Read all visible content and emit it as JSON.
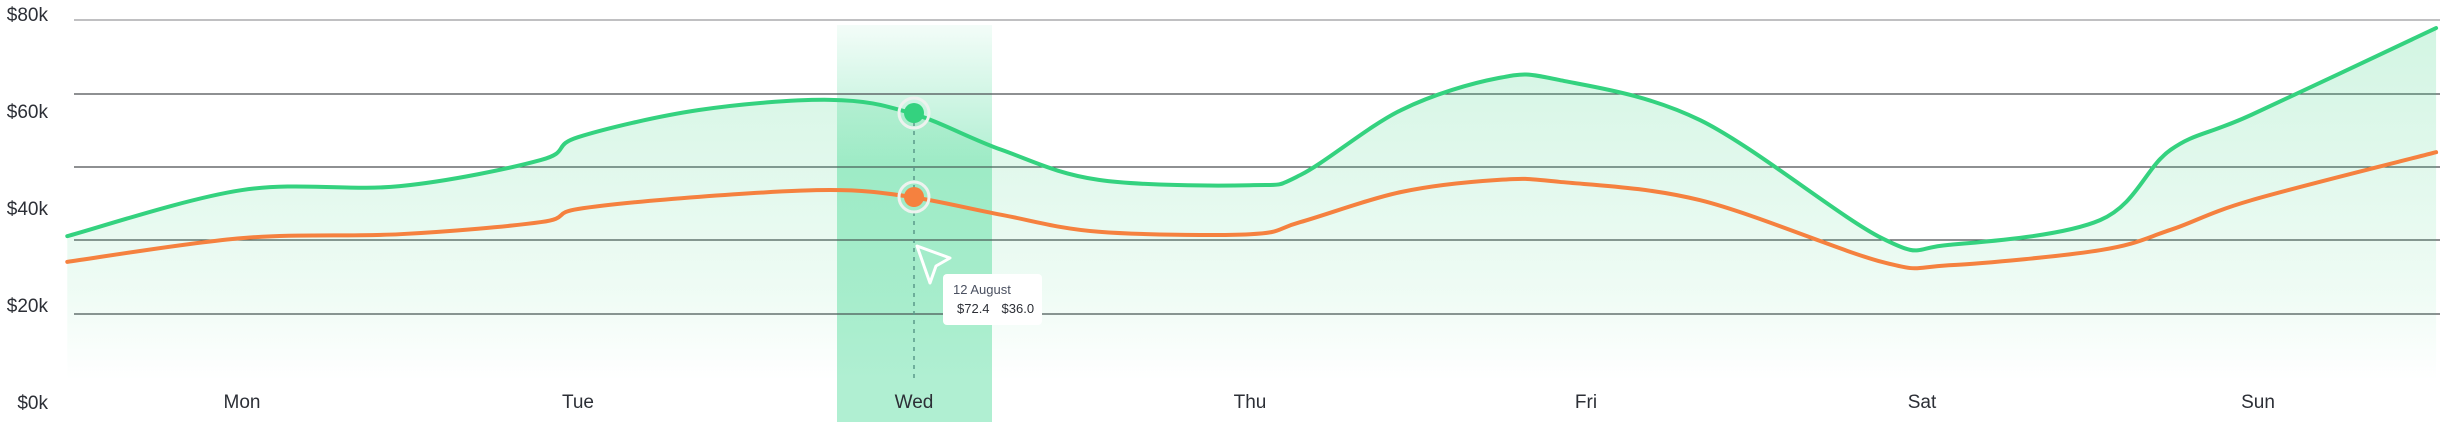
{
  "chart_data": {
    "type": "area",
    "categories": [
      "Mon",
      "Tue",
      "Wed",
      "Thu",
      "Fri",
      "Sat",
      "Sun"
    ],
    "highlighted_category": "Wed",
    "x": [
      -0.52,
      0,
      0.47,
      0.89,
      1.0,
      1.36,
      1.75,
      1.99,
      2.26,
      2.55,
      3.0,
      3.15,
      3.45,
      3.74,
      3.92,
      4.34,
      4.88,
      5.08,
      5.53,
      5.74,
      5.98,
      6.53
    ],
    "series": [
      {
        "color": "#34d27f",
        "fill": true,
        "values": [
          34.2,
          43.7,
          44.5,
          49.9,
          54.6,
          60.2,
          62.3,
          59.6,
          52.0,
          45.8,
          44.7,
          46.8,
          60.2,
          66.8,
          66.4,
          58.1,
          33.8,
          32.4,
          37.5,
          52.0,
          59.2,
          77.1
        ]
      },
      {
        "color": "#f5813f",
        "fill": false,
        "values": [
          28.9,
          33.8,
          34.6,
          37.1,
          39.8,
          42.3,
          43.7,
          42.3,
          38.6,
          35.1,
          34.6,
          37.1,
          43.3,
          45.8,
          45.4,
          41.6,
          28.9,
          28.2,
          31.3,
          35.5,
          41.6,
          51.5
        ]
      }
    ],
    "y_ticks": [
      "$80k",
      "$60k",
      "$40k",
      "$20k",
      "$0k"
    ],
    "ylim": [
      0,
      80
    ],
    "grid": true,
    "title": "",
    "xlabel": "",
    "ylabel": ""
  },
  "tooltip": {
    "date": "12 August",
    "values": [
      "$72.4",
      "$36.0"
    ],
    "colors": [
      "#34d27f",
      "#f5813f"
    ]
  }
}
